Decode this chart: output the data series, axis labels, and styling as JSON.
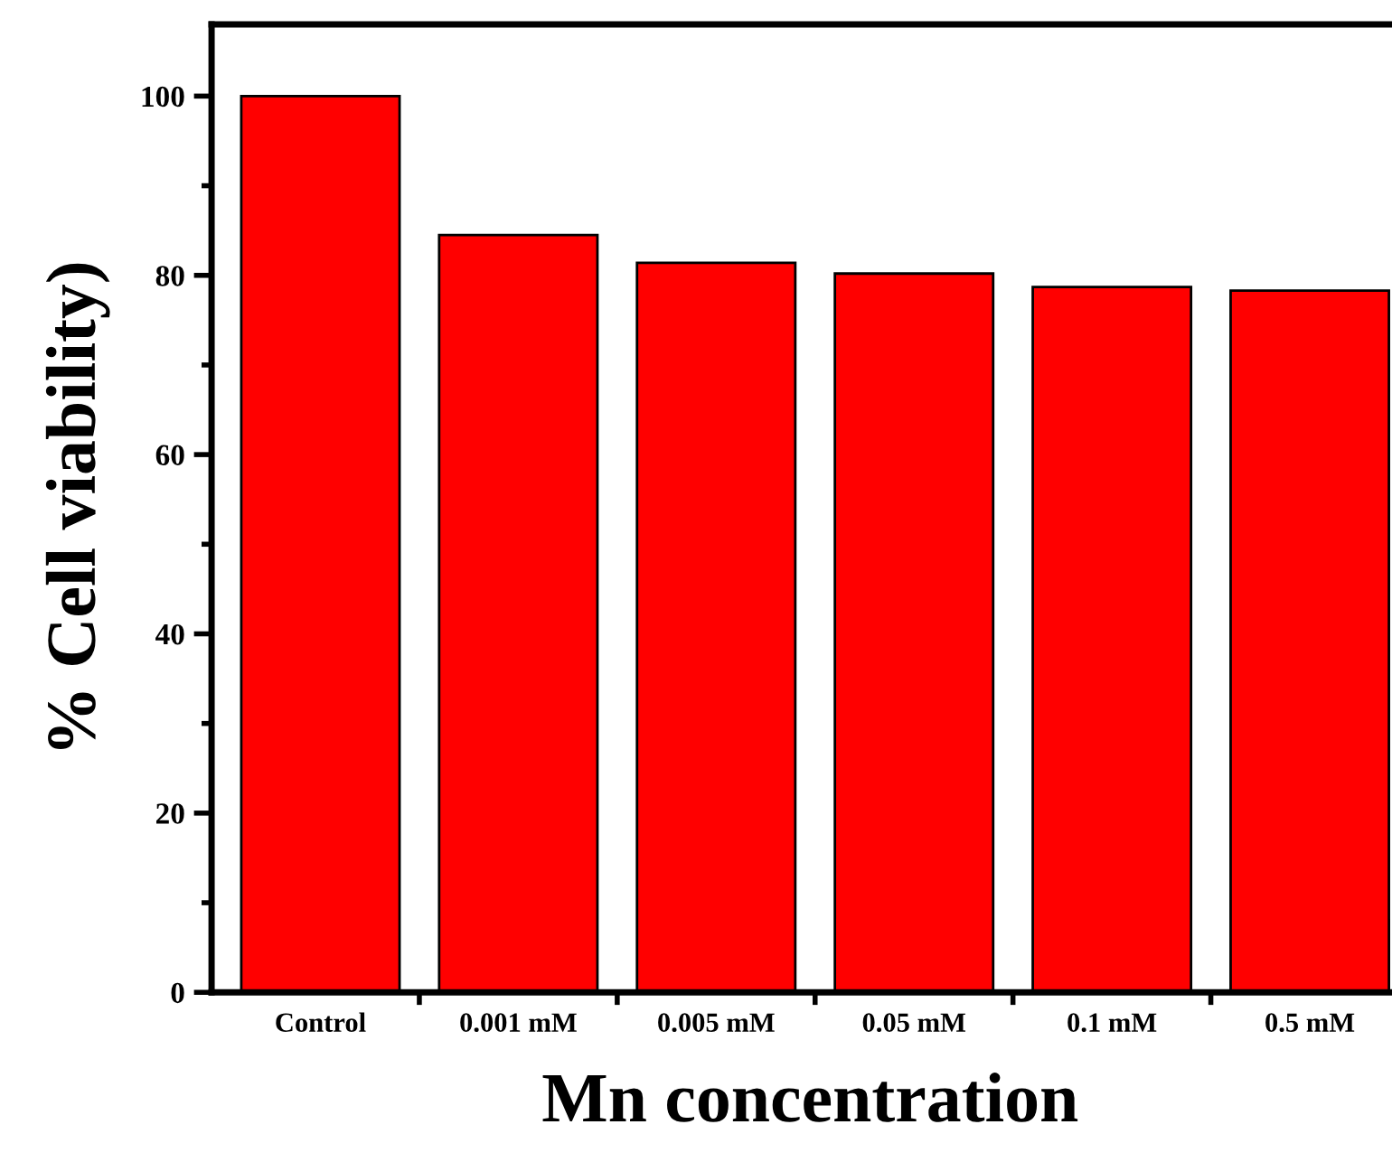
{
  "chart_data": {
    "type": "bar",
    "xlabel": "Mn concentration",
    "ylabel": "% Cell viability)",
    "categories": [
      "Control",
      "0.001 mM",
      "0.005 mM",
      "0.05 mM",
      "0.1 mM",
      "0.5 mM"
    ],
    "values": [
      100,
      84.5,
      81.4,
      80.2,
      78.7,
      78.3
    ],
    "color": "#ff0000",
    "ylim": [
      0,
      108
    ],
    "yticks": [
      0,
      {
        "value": 10,
        "label": null
      },
      20,
      {
        "value": 30,
        "label": null
      },
      40,
      {
        "value": 50,
        "label": null
      },
      60,
      {
        "value": 70,
        "label": null
      },
      80,
      {
        "value": 90,
        "label": null
      },
      100
    ],
    "grid": false,
    "legend": false
  }
}
